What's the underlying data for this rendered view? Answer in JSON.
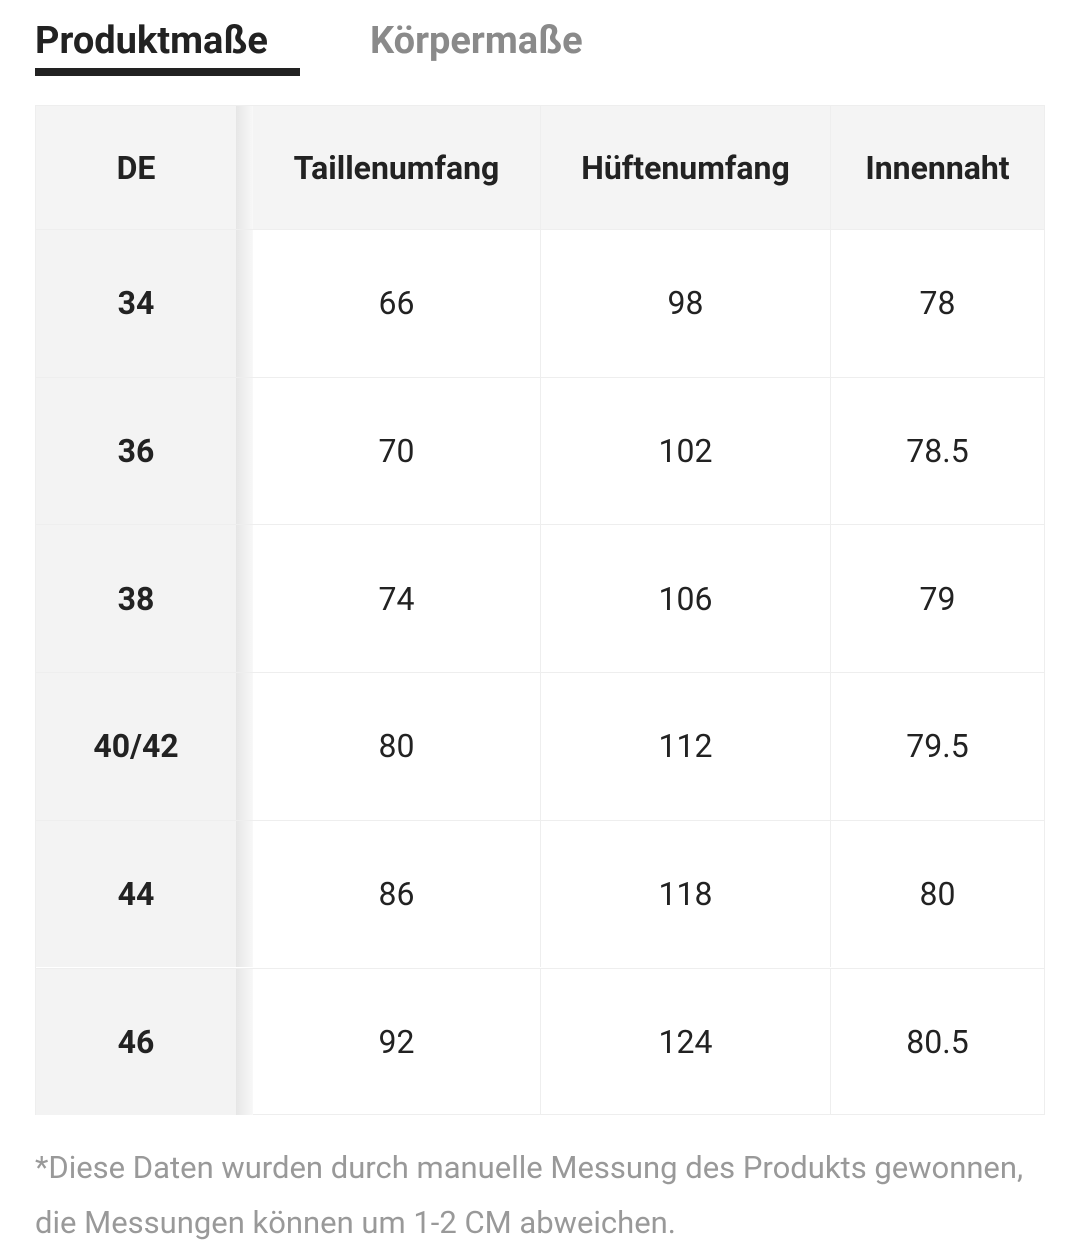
{
  "tabs": [
    "Produktmaße",
    "Körpermaße"
  ],
  "table": {
    "header": [
      "DE",
      "Taillenumfang",
      "Hüftenumfang",
      "Innennaht"
    ],
    "rows": [
      [
        "34",
        "66",
        "98",
        "78"
      ],
      [
        "36",
        "70",
        "102",
        "78.5"
      ],
      [
        "38",
        "74",
        "106",
        "79"
      ],
      [
        "40/42",
        "80",
        "112",
        "79.5"
      ],
      [
        "44",
        "86",
        "118",
        "80"
      ],
      [
        "46",
        "92",
        "124",
        "80.5"
      ]
    ]
  },
  "note": "*Diese Daten wurden durch manuelle Messung des Produkts gewonnen, die Messungen können um 1-2 CM abweichen."
}
